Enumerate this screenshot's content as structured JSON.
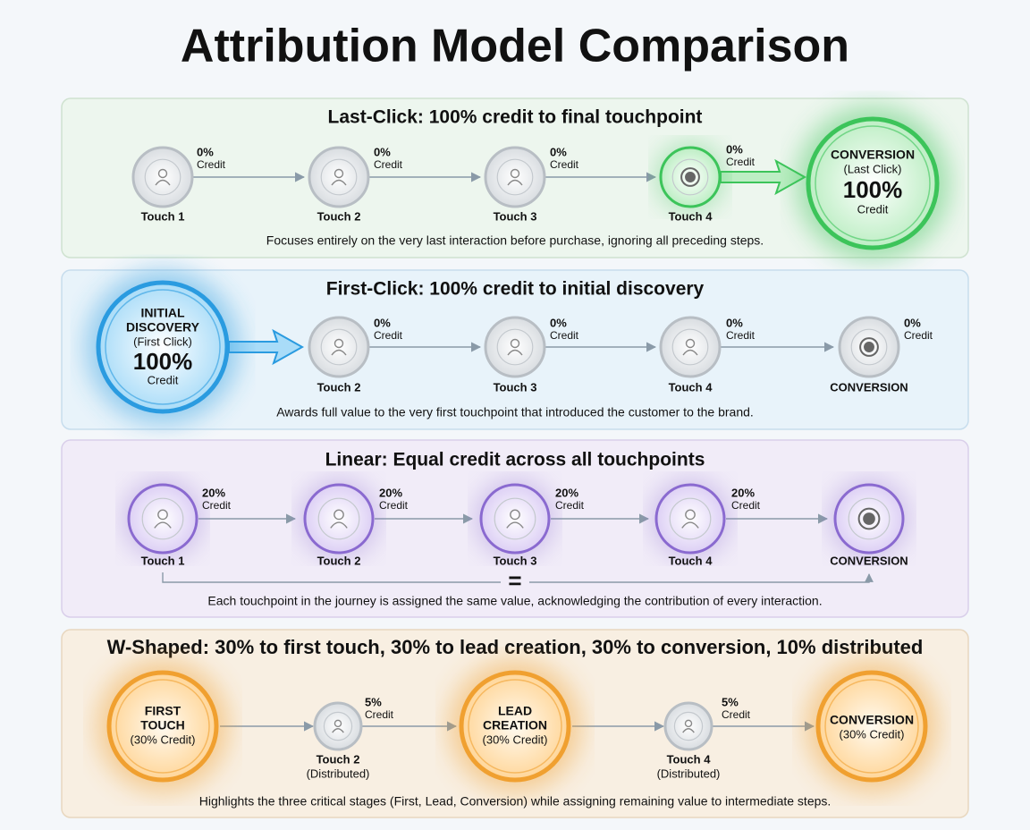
{
  "title": "Attribution Model Comparison",
  "panels": [
    {
      "heading": "Last-Click: 100% credit to final touchpoint",
      "nodes": [
        {
          "label": [
            "Touch 1"
          ]
        },
        {
          "label": [
            "Touch 2"
          ]
        },
        {
          "label": [
            "Touch 3"
          ]
        },
        {
          "label": [
            "Touch 4"
          ]
        },
        {
          "lines": [
            "CONVERSION",
            "(Last Click)",
            "100%",
            "Credit"
          ]
        }
      ],
      "credits": [
        {
          "pct": "0%",
          "word": "Credit"
        },
        {
          "pct": "0%",
          "word": "Credit"
        },
        {
          "pct": "0%",
          "word": "Credit"
        },
        {
          "pct": "0%",
          "word": "Credit"
        }
      ],
      "caption": "Focuses entirely on the very last interaction before purchase, ignoring all preceding steps."
    },
    {
      "heading": "First-Click: 100% credit to initial discovery",
      "nodes": [
        {
          "lines": [
            "INITIAL",
            "DISCOVERY",
            "(First Click)",
            "100%",
            "Credit"
          ]
        },
        {
          "label": [
            "Touch 2"
          ]
        },
        {
          "label": [
            "Touch 3"
          ]
        },
        {
          "label": [
            "Touch 4"
          ]
        },
        {
          "label": [
            "CONVERSION"
          ]
        }
      ],
      "credits": [
        {
          "pct": "0%",
          "word": "Credit"
        },
        {
          "pct": "0%",
          "word": "Credit"
        },
        {
          "pct": "0%",
          "word": "Credit"
        },
        {
          "pct": "0%",
          "word": "Credit"
        }
      ],
      "caption": "Awards full value to the very first touchpoint that introduced the customer to the brand."
    },
    {
      "heading": "Linear: Equal credit across all touchpoints",
      "nodes": [
        {
          "label": [
            "Touch 1"
          ]
        },
        {
          "label": [
            "Touch 2"
          ]
        },
        {
          "label": [
            "Touch 3"
          ]
        },
        {
          "label": [
            "Touch 4"
          ]
        },
        {
          "label": [
            "CONVERSION"
          ]
        }
      ],
      "credits": [
        {
          "pct": "20%",
          "word": "Credit"
        },
        {
          "pct": "20%",
          "word": "Credit"
        },
        {
          "pct": "20%",
          "word": "Credit"
        },
        {
          "pct": "20%",
          "word": "Credit"
        }
      ],
      "equals": "=",
      "caption": "Each touchpoint in the journey is assigned the same value, acknowledging the contribution of every interaction."
    },
    {
      "heading": "W-Shaped: 30% to first touch, 30% to lead creation, 30% to conversion, 10% distributed",
      "nodes": [
        {
          "lines": [
            "FIRST",
            "TOUCH",
            "(30% Credit)"
          ]
        },
        {
          "label": [
            "Touch 2",
            "(Distributed)"
          ]
        },
        {
          "lines": [
            "LEAD",
            "CREATION",
            "(30% Credit)"
          ]
        },
        {
          "label": [
            "Touch 4",
            "(Distributed)"
          ]
        },
        {
          "lines": [
            "CONVERSION",
            "(30% Credit)"
          ]
        }
      ],
      "credits": [
        {
          "pct": "5%",
          "word": "Credit"
        },
        {
          "pct": "5%",
          "word": "Credit"
        }
      ],
      "caption": "Highlights the three critical stages (First, Lead, Conversion) while assigning remaining value to intermediate steps."
    }
  ]
}
